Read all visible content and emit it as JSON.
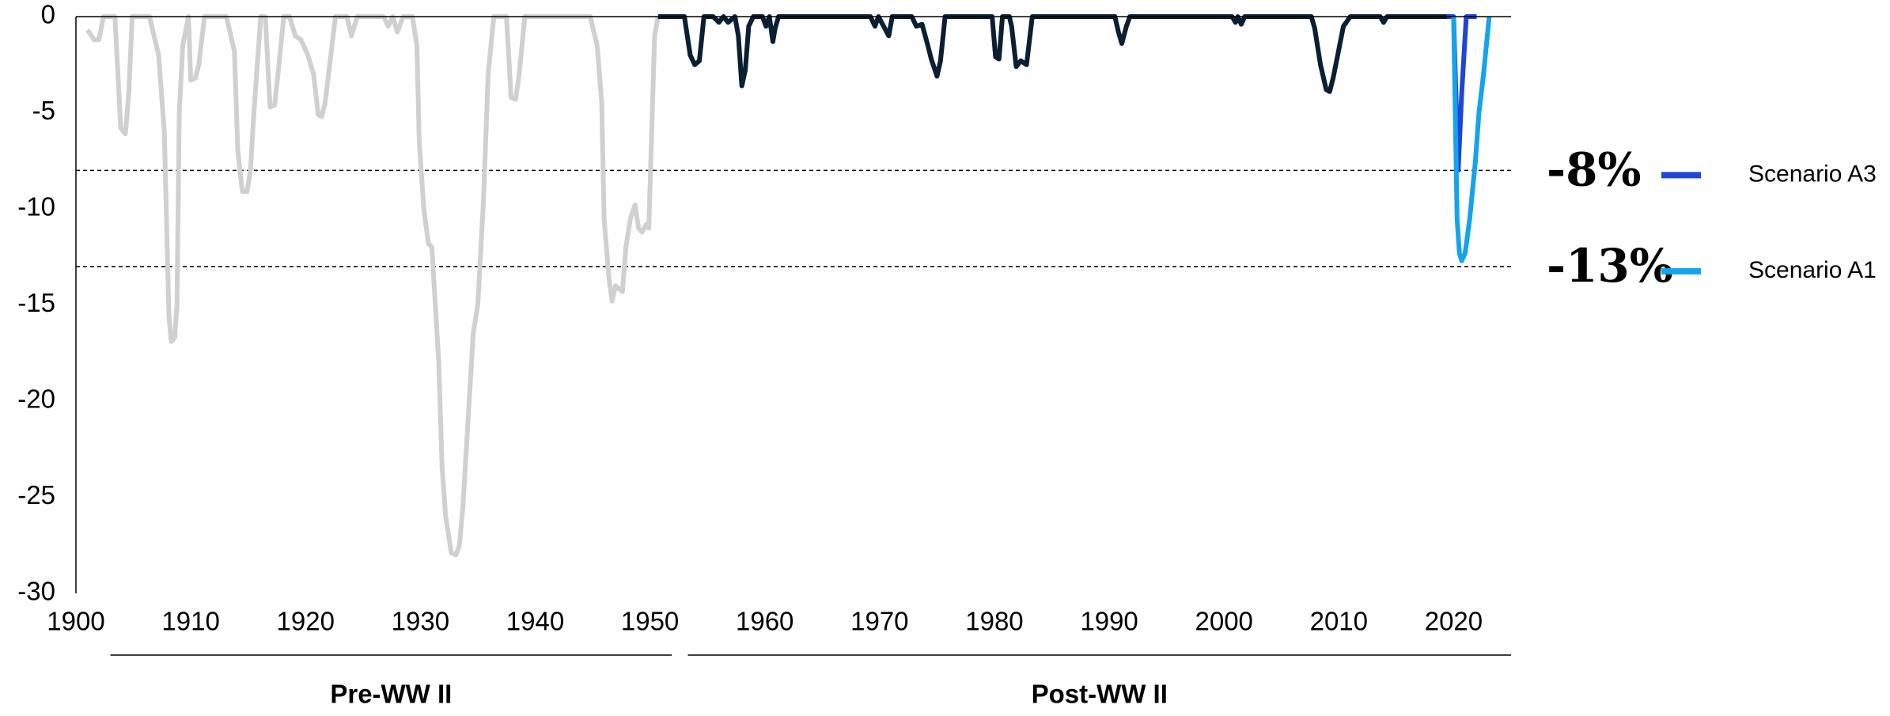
{
  "chart_data": {
    "type": "line",
    "xlim": [
      1900,
      2025
    ],
    "ylim": [
      -30,
      0
    ],
    "xticks": [
      1900,
      1910,
      1920,
      1930,
      1940,
      1950,
      1960,
      1970,
      1980,
      1990,
      2000,
      2010,
      2020
    ],
    "yticks": [
      0,
      -5,
      -10,
      -15,
      -20,
      -25,
      -30
    ],
    "reference_lines": [
      {
        "value": -8,
        "label": "-8%"
      },
      {
        "value": -13,
        "label": "-13%"
      }
    ],
    "periods": [
      {
        "label": "Pre-WW II",
        "start": 1903,
        "end": 1951.9
      },
      {
        "label": "Post-WW II",
        "start": 1953.3,
        "end": 2025
      }
    ],
    "series": [
      {
        "color": "#d0d0d0",
        "x": [
          1901.0,
          1901.6,
          1902.0,
          1902.4,
          1903.4,
          1903.9,
          1904.3,
          1904.6,
          1904.9,
          1906.4,
          1907.2,
          1907.7,
          1908.1,
          1908.3,
          1908.6,
          1908.8,
          1909.0,
          1909.3,
          1909.8,
          1910.0,
          1910.4,
          1910.7,
          1911.2,
          1913.1,
          1913.8,
          1914.1,
          1914.5,
          1914.9,
          1915.2,
          1915.5,
          1916.1,
          1916.5,
          1916.9,
          1917.3,
          1917.6,
          1918.1,
          1918.6,
          1919.1,
          1919.6,
          1920.2,
          1920.7,
          1921.1,
          1921.4,
          1921.7,
          1922.0,
          1922.6,
          1923.6,
          1924.0,
          1924.5,
          1926.8,
          1927.2,
          1927.6,
          1928.0,
          1928.5,
          1929.3,
          1929.7,
          1929.9,
          1930.3,
          1930.7,
          1931.0,
          1931.6,
          1931.9,
          1932.2,
          1932.7,
          1933.1,
          1933.4,
          1933.7,
          1934.1,
          1934.6,
          1935.0,
          1935.5,
          1935.9,
          1936.4,
          1937.5,
          1937.9,
          1938.3,
          1938.6,
          1939.1,
          1944.8,
          1945.4,
          1945.8,
          1946.0,
          1946.4,
          1946.7,
          1947.0,
          1947.6,
          1947.9,
          1948.3,
          1948.7,
          1949.0,
          1949.3,
          1949.7,
          1949.9,
          1950.2,
          1950.4,
          1950.7
        ],
        "values": [
          -0.7,
          -1.2,
          -1.2,
          0,
          0,
          -5.8,
          -6.1,
          -4,
          0,
          0,
          -2,
          -6,
          -15.5,
          -16.9,
          -16.7,
          -15,
          -5,
          -1.5,
          0,
          -3.3,
          -3.2,
          -2.5,
          0,
          0,
          -1.8,
          -7,
          -9.1,
          -9.1,
          -8,
          -5,
          0,
          0,
          -4.7,
          -4.6,
          -3,
          0,
          0,
          -1,
          -1.2,
          -2,
          -3,
          -5.1,
          -5.2,
          -4.5,
          -3,
          0,
          0,
          -1,
          0,
          0,
          -0.5,
          0,
          -0.8,
          0,
          0,
          -1.5,
          -6.5,
          -10,
          -11.8,
          -12,
          -18,
          -23.5,
          -26,
          -27.9,
          -28,
          -27.5,
          -25.5,
          -21.5,
          -16.5,
          -15,
          -9.5,
          -3,
          0,
          0,
          -4.2,
          -4.3,
          -3,
          0,
          0,
          -1.5,
          -4.5,
          -10.5,
          -13.5,
          -14.8,
          -14,
          -14.3,
          -12,
          -10.5,
          -9.8,
          -11,
          -11.2,
          -10.8,
          -11,
          -5,
          -1,
          0
        ]
      },
      {
        "color": "#0b1f33",
        "x": [
          1950.7,
          1953.0,
          1953.5,
          1953.9,
          1954.3,
          1954.7,
          1955.5,
          1956.0,
          1956.4,
          1956.8,
          1957.4,
          1957.7,
          1958.0,
          1958.3,
          1958.6,
          1959.0,
          1959.8,
          1960.1,
          1960.4,
          1960.7,
          1960.9,
          1961.2,
          1969.2,
          1969.6,
          1969.9,
          1970.8,
          1971.1,
          1972.8,
          1973.2,
          1973.7,
          1974.2,
          1974.5,
          1975.0,
          1975.3,
          1975.7,
          1979.8,
          1980.1,
          1980.4,
          1980.7,
          1981.3,
          1981.5,
          1981.9,
          1982.3,
          1982.8,
          1983.3,
          1990.5,
          1990.8,
          1991.1,
          1991.5,
          1991.8,
          2000.7,
          2001.0,
          2001.2,
          2001.5,
          2001.8,
          2007.6,
          2007.9,
          2008.4,
          2008.9,
          2009.2,
          2009.5,
          2009.9,
          2010.4,
          2011.0,
          2013.6,
          2013.9,
          2014.2,
          2020.0
        ],
        "values": [
          0,
          0,
          -2,
          -2.5,
          -2.3,
          0,
          0,
          -0.3,
          0,
          -0.3,
          0,
          -1,
          -3.6,
          -2.8,
          -0.5,
          0,
          0,
          -0.5,
          0,
          -1.3,
          -0.6,
          0,
          0,
          -0.5,
          0,
          -1,
          0,
          0,
          -0.5,
          -0.4,
          -1.5,
          -2.2,
          -3.1,
          -2.3,
          0,
          0,
          -2.1,
          -2.2,
          0,
          0,
          -0.5,
          -2.6,
          -2.3,
          -2.5,
          0,
          0,
          -0.8,
          -1.4,
          -0.5,
          0,
          0,
          -0.3,
          0,
          -0.4,
          0,
          0,
          -0.6,
          -2.5,
          -3.8,
          -3.9,
          -3.2,
          -2,
          -0.5,
          0,
          0,
          -0.3,
          0,
          0
        ]
      },
      {
        "name": "Scenario A3",
        "color": "#1f44d6",
        "x": [
          2019.4,
          2020.0,
          2020.4,
          2020.7,
          2021.1,
          2022.0
        ],
        "values": [
          0,
          0,
          -8,
          -4,
          0,
          0
        ]
      },
      {
        "name": "Scenario A1",
        "color": "#14a4ec",
        "x": [
          2020.0,
          2020.3,
          2020.5,
          2020.7,
          2021.0,
          2021.4,
          2021.9,
          2022.2,
          2022.6,
          2023.1
        ],
        "values": [
          0,
          -10.5,
          -12.3,
          -12.7,
          -12.3,
          -10.5,
          -7.5,
          -5,
          -3,
          0
        ]
      }
    ]
  }
}
